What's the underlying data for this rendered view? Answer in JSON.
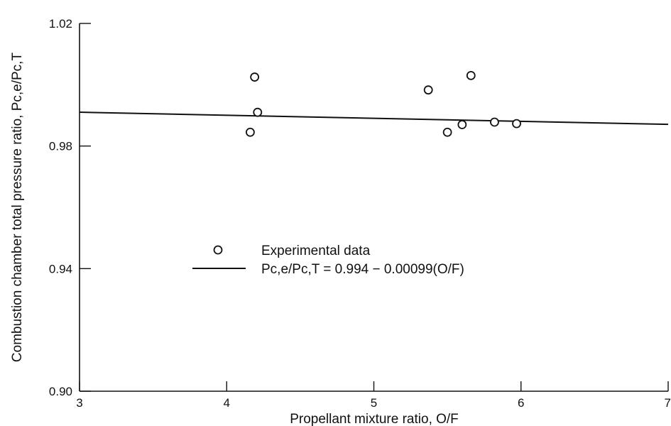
{
  "chart_data": {
    "type": "scatter",
    "xlabel": "Propellant mixture ratio, O/F",
    "ylabel": "Combustion chamber total pressure ratio, Pc,e/Pc,T",
    "xlim": [
      3,
      7
    ],
    "ylim": [
      0.9,
      1.02
    ],
    "x_ticks": [
      3,
      4,
      5,
      6,
      7
    ],
    "y_ticks": [
      0.9,
      0.94,
      0.98,
      1.02
    ],
    "x_tick_labels": [
      "3",
      "4",
      "5",
      "6",
      "7"
    ],
    "y_tick_labels": [
      "0.90",
      "0.94",
      "0.98",
      "1.02"
    ],
    "grid": false,
    "legend_placement": "center-left",
    "series": [
      {
        "name": "Experimental data",
        "marker": "open-circle",
        "points": [
          {
            "x": 4.16,
            "y": 0.9845
          },
          {
            "x": 4.19,
            "y": 1.0025
          },
          {
            "x": 4.21,
            "y": 0.991
          },
          {
            "x": 5.37,
            "y": 0.9983
          },
          {
            "x": 5.5,
            "y": 0.9845
          },
          {
            "x": 5.6,
            "y": 0.987
          },
          {
            "x": 5.66,
            "y": 1.003
          },
          {
            "x": 5.82,
            "y": 0.9878
          },
          {
            "x": 5.97,
            "y": 0.9873
          }
        ]
      },
      {
        "name": "Pc,e/Pc,T = 0.994 − 0.00099(O/F)",
        "type": "line",
        "equation": {
          "intercept": 0.994,
          "slope": -0.00099
        },
        "x_range": [
          3,
          7
        ]
      }
    ]
  }
}
